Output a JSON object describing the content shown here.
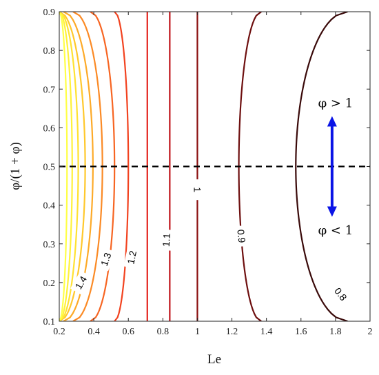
{
  "chart_data": {
    "type": "contour",
    "xlabel": "Le",
    "ylabel": "φ/(1 + φ)",
    "xlim": [
      0.2,
      2.0
    ],
    "ylim": [
      0.1,
      0.9
    ],
    "xticks": [
      0.2,
      0.4,
      0.6,
      0.8,
      1.0,
      1.2,
      1.4,
      1.6,
      1.8,
      2.0
    ],
    "xtick_labels": [
      "0.2",
      "0.4",
      "0.6",
      "0.8",
      "1",
      "1.2",
      "1.4",
      "1.6",
      "1.8",
      "2"
    ],
    "yticks": [
      0.1,
      0.2,
      0.3,
      0.4,
      0.5,
      0.6,
      0.7,
      0.8,
      0.9
    ],
    "ytick_labels": [
      "0.1",
      "0.2",
      "0.3",
      "0.4",
      "0.5",
      "0.6",
      "0.7",
      "0.8",
      "0.9"
    ],
    "grid": false,
    "contours": [
      {
        "level": 0.8,
        "x_mid": 1.57,
        "x_edge": 1.87,
        "color": "#3a0a0a",
        "label": "0.8",
        "label_at": [
          1.83,
          0.17
        ],
        "label_rot": 52
      },
      {
        "level": 0.9,
        "x_mid": 1.24,
        "x_edge": 1.37,
        "color": "#6e0f0f",
        "label": "0.9",
        "label_at": [
          1.255,
          0.32
        ],
        "label_rot": 84
      },
      {
        "level": 1.0,
        "x_mid": 1.0,
        "x_edge": 1.0,
        "color": "#8b1010",
        "label": "1",
        "label_at": [
          1.0,
          0.44
        ],
        "label_rot": 90
      },
      {
        "level": 1.1,
        "x_mid": 0.84,
        "x_edge": 0.84,
        "color": "#c0141a",
        "label": "1.1",
        "label_at": [
          0.82,
          0.31
        ],
        "label_rot": -86
      },
      {
        "level": 1.2,
        "x_mid": 0.71,
        "x_edge": 0.71,
        "color": "#e4241d",
        "label": "1.2",
        "label_at": [
          0.62,
          0.265
        ],
        "label_rot": -78
      },
      {
        "level": 1.3,
        "x_mid": 0.6,
        "x_edge": 0.52,
        "color": "#f2421f",
        "label": "1.3",
        "label_at": [
          0.47,
          0.26
        ],
        "label_rot": -70
      },
      {
        "level": 1.4,
        "x_mid": 0.52,
        "x_edge": 0.38,
        "color": "#f76522",
        "label": "1.4",
        "label_at": [
          0.325,
          0.2
        ],
        "label_rot": -60
      },
      {
        "level": 1.5,
        "x_mid": 0.45,
        "x_edge": 0.28,
        "color": "#fb8a25",
        "label": "",
        "label_at": null,
        "label_rot": 0
      },
      {
        "level": 1.6,
        "x_mid": 0.395,
        "x_edge": 0.225,
        "color": "#fdaa28",
        "label": "",
        "label_at": null,
        "label_rot": 0
      },
      {
        "level": 1.7,
        "x_mid": 0.35,
        "x_edge": 0.2,
        "color": "#ffc82c",
        "label": "",
        "label_at": null,
        "label_rot": 0
      },
      {
        "level": 1.8,
        "x_mid": 0.31,
        "x_edge": 0.2,
        "color": "#ffe232",
        "label": "",
        "label_at": null,
        "label_rot": 0
      },
      {
        "level": 1.9,
        "x_mid": 0.275,
        "x_edge": 0.2,
        "color": "#fff23a",
        "label": "",
        "label_at": null,
        "label_rot": 0
      },
      {
        "level": 2.0,
        "x_mid": 0.245,
        "x_edge": 0.2,
        "color": "#ffff48",
        "label": "",
        "label_at": null,
        "label_rot": 0
      }
    ],
    "reference_line": {
      "y": 0.5,
      "style": "dashed",
      "color": "#000000"
    },
    "annotations": {
      "arrow": {
        "x": 1.78,
        "y_from": 0.37,
        "y_to": 0.63,
        "color": "#0a14e6"
      },
      "upper_text": "φ > 1",
      "upper_at": [
        1.8,
        0.65
      ],
      "lower_text": "φ < 1",
      "lower_at": [
        1.8,
        0.335
      ]
    }
  }
}
